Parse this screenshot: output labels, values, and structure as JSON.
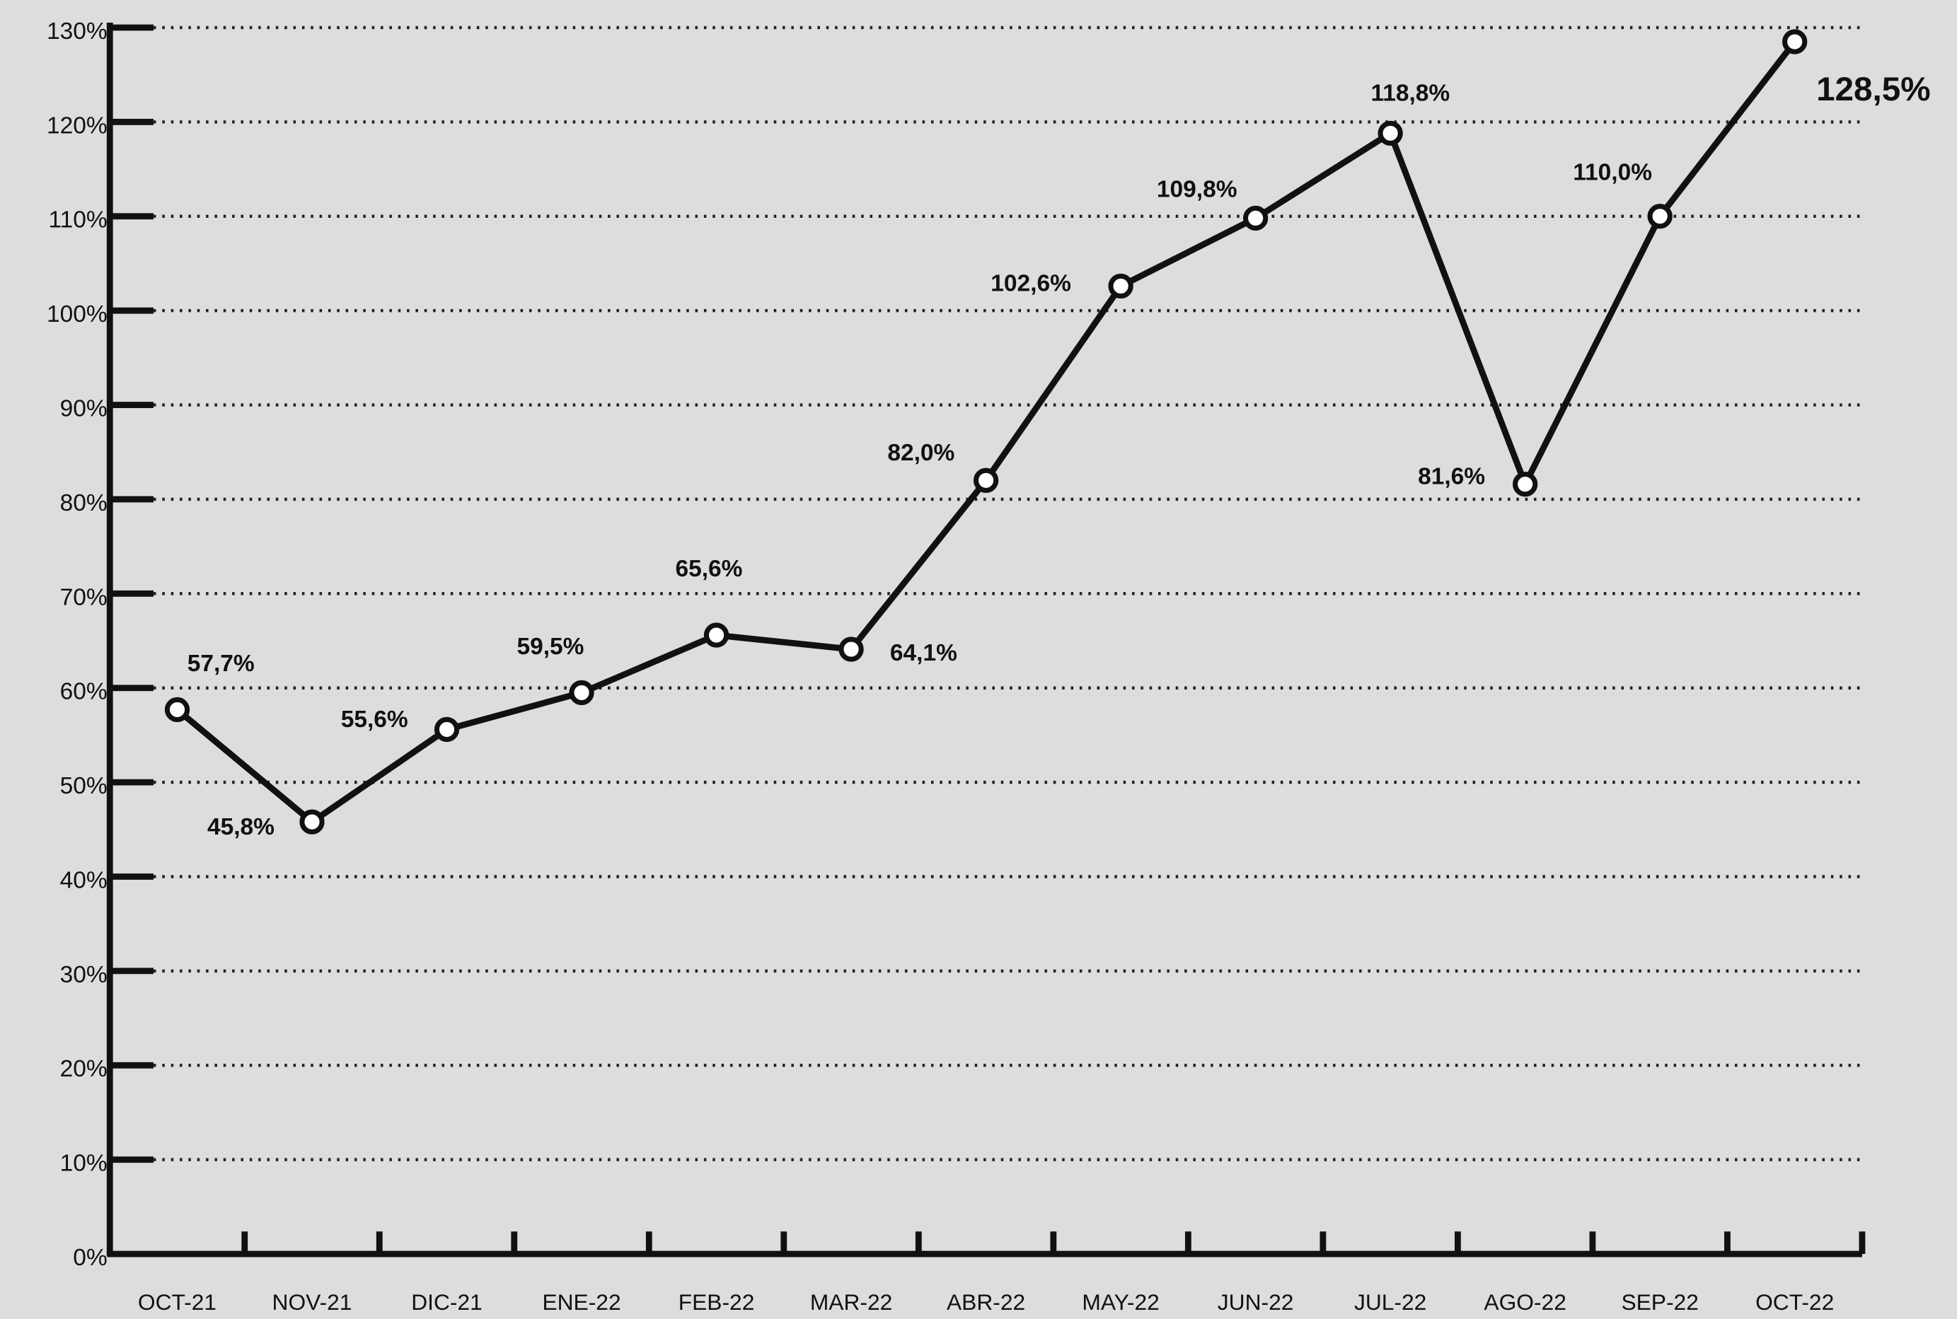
{
  "chart_data": {
    "type": "line",
    "categories": [
      "OCT-21",
      "NOV-21",
      "DIC-21",
      "ENE-22",
      "FEB-22",
      "MAR-22",
      "ABR-22",
      "MAY-22",
      "JUN-22",
      "JUL-22",
      "AGO-22",
      "SEP-22",
      "OCT-22"
    ],
    "values": [
      57.7,
      45.8,
      55.6,
      59.5,
      65.6,
      64.1,
      82.0,
      102.6,
      109.8,
      118.8,
      81.6,
      110.0,
      128.5
    ],
    "value_labels": [
      "57,7%",
      "45,8%",
      "55,6%",
      "59,5%",
      "65,6%",
      "64,1%",
      "82,0%",
      "102,6%",
      "109,8%",
      "118,8%",
      "81,6%",
      "110,0%",
      "128,5%"
    ],
    "color": "#111111",
    "ylim": [
      0,
      130
    ],
    "yticks": [
      {
        "value": 0,
        "label": "0%"
      },
      {
        "value": 10,
        "label": "10%"
      },
      {
        "value": 20,
        "label": "20%"
      },
      {
        "value": 30,
        "label": "30%"
      },
      {
        "value": 40,
        "label": "40%"
      },
      {
        "value": 50,
        "label": "50%"
      },
      {
        "value": 60,
        "label": "60%"
      },
      {
        "value": 70,
        "label": "70%"
      },
      {
        "value": 80,
        "label": "80%"
      },
      {
        "value": 90,
        "label": "90%"
      },
      {
        "value": 100,
        "label": "100%"
      },
      {
        "value": 110,
        "label": "110%"
      },
      {
        "value": 120,
        "label": "120%"
      },
      {
        "value": 130,
        "label": "130%"
      }
    ],
    "grid": true
  }
}
